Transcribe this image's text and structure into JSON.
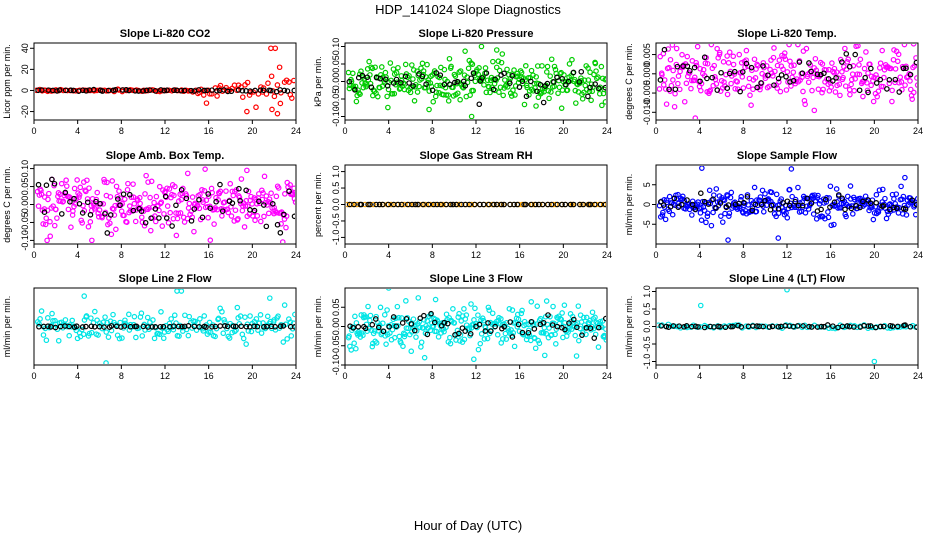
{
  "figure": {
    "title": "HDP_141024  Slope Diagnostics",
    "xlabel": "Hour of Day (UTC)"
  },
  "chart_data": [
    {
      "type": "scatter",
      "title": "Slope Li-820 CO2",
      "ylabel": "Licor ppm per min.",
      "xlim": [
        0,
        24
      ],
      "xticks": [
        0,
        4,
        8,
        12,
        16,
        20,
        24
      ],
      "ylim": [
        -28,
        45
      ],
      "yticks": [
        -20,
        0,
        20,
        40
      ],
      "color": "#ff0000",
      "series": [
        {
          "name": "colored",
          "pattern": "tail",
          "spread": 8,
          "start": 0.2,
          "end": 24,
          "count": 120,
          "points": [
            {
              "x": 21.7,
              "y": 40
            },
            {
              "x": 22.1,
              "y": 40
            },
            {
              "x": 22.3,
              "y": -22
            },
            {
              "x": 21.8,
              "y": -18
            },
            {
              "x": 19.5,
              "y": -20
            },
            {
              "x": 22.5,
              "y": 22
            },
            {
              "x": 15.8,
              "y": -12
            }
          ]
        },
        {
          "name": "black",
          "pattern": "flat",
          "spread": 0.5,
          "start": 0.3,
          "end": 24,
          "count": 60
        }
      ]
    },
    {
      "type": "scatter",
      "title": "Slope Li-820 Pressure",
      "ylabel": "kPa per min.",
      "xlim": [
        0,
        24
      ],
      "xticks": [
        0,
        4,
        8,
        12,
        16,
        20,
        24
      ],
      "ylim": [
        -0.11,
        0.11
      ],
      "yticks": [
        -0.1,
        -0.05,
        0.0,
        0.05,
        0.1
      ],
      "color": "#00cc00",
      "series": [
        {
          "name": "colored",
          "pattern": "cloud",
          "spread": 0.035,
          "start": 0.3,
          "end": 24,
          "count": 330,
          "points": [
            {
              "x": 12.5,
              "y": 0.1
            },
            {
              "x": 11.6,
              "y": -0.1
            },
            {
              "x": 7.7,
              "y": -0.08
            },
            {
              "x": 13.9,
              "y": 0.09
            },
            {
              "x": 17.5,
              "y": -0.07
            }
          ]
        },
        {
          "name": "black",
          "pattern": "cloud",
          "spread": 0.02,
          "start": 0.3,
          "end": 24,
          "count": 60,
          "points": [
            {
              "x": 12.3,
              "y": -0.065
            },
            {
              "x": 18.2,
              "y": -0.06
            }
          ]
        }
      ]
    },
    {
      "type": "scatter",
      "title": "Slope Li-820 Temp.",
      "ylabel": "degrees C per min.",
      "xlim": [
        0,
        24
      ],
      "xticks": [
        0,
        4,
        8,
        12,
        16,
        20,
        24
      ],
      "ylim": [
        -0.012,
        0.008
      ],
      "yticks": [
        -0.01,
        -0.005,
        0.0,
        0.005
      ],
      "color": "#ff00ff",
      "series": [
        {
          "name": "colored",
          "pattern": "cloud",
          "spread": 0.004,
          "start": 0.3,
          "end": 24,
          "count": 300,
          "points": [
            {
              "x": 1.5,
              "y": 0.0075
            },
            {
              "x": 23.6,
              "y": 0.0078
            },
            {
              "x": 3.6,
              "y": -0.0115
            },
            {
              "x": 14.5,
              "y": -0.0095
            }
          ]
        },
        {
          "name": "black",
          "pattern": "cloud",
          "spread": 0.0025,
          "start": 0.3,
          "end": 24,
          "count": 60
        }
      ]
    },
    {
      "type": "scatter",
      "title": "Slope Amb. Box Temp.",
      "ylabel": "degrees C per min.",
      "xlim": [
        0,
        24
      ],
      "xticks": [
        0,
        4,
        8,
        12,
        16,
        20,
        24
      ],
      "ylim": [
        -0.11,
        0.11
      ],
      "yticks": [
        -0.1,
        -0.05,
        0.0,
        0.05,
        0.1
      ],
      "color": "#ff00ff",
      "series": [
        {
          "name": "colored",
          "pattern": "cloud",
          "spread": 0.04,
          "start": 0.3,
          "end": 24,
          "count": 320,
          "points": [
            {
              "x": 1.2,
              "y": -0.1
            },
            {
              "x": 19.5,
              "y": 0.095
            },
            {
              "x": 5.3,
              "y": -0.1
            }
          ]
        },
        {
          "name": "black",
          "pattern": "cloud",
          "spread": 0.035,
          "start": 0.3,
          "end": 24,
          "count": 60
        }
      ]
    },
    {
      "type": "scatter",
      "title": "Slope Gas Stream RH",
      "ylabel": "percent per min.",
      "xlim": [
        0,
        24
      ],
      "xticks": [
        0,
        4,
        8,
        12,
        16,
        20,
        24
      ],
      "ylim": [
        -1.2,
        1.2
      ],
      "yticks": [
        -1.0,
        -0.5,
        0.0,
        0.5,
        1.0
      ],
      "color": "#ffa500",
      "series": [
        {
          "name": "colored",
          "pattern": "flat",
          "spread": 0.0,
          "start": 0.1,
          "end": 24,
          "count": 60
        },
        {
          "name": "black",
          "pattern": "flat",
          "spread": 0.0,
          "start": 0.3,
          "end": 24,
          "count": 60
        }
      ]
    },
    {
      "type": "scatter",
      "title": "Slope Sample Flow",
      "ylabel": "ml/min per min.",
      "xlim": [
        0,
        24
      ],
      "xticks": [
        0,
        4,
        8,
        12,
        16,
        20,
        24
      ],
      "ylim": [
        -10,
        10
      ],
      "yticks": [
        -5,
        0,
        5
      ],
      "color": "#0000ff",
      "series": [
        {
          "name": "colored",
          "pattern": "cloud",
          "spread": 2.2,
          "start": 0.3,
          "end": 24,
          "count": 300,
          "points": [
            {
              "x": 12.4,
              "y": 9
            },
            {
              "x": 4.2,
              "y": 9.2
            },
            {
              "x": 6.6,
              "y": -9
            },
            {
              "x": 11.2,
              "y": -8.5
            },
            {
              "x": 22.8,
              "y": 6.8
            }
          ]
        },
        {
          "name": "black",
          "pattern": "cloud",
          "spread": 1.0,
          "start": 0.3,
          "end": 24,
          "count": 60
        }
      ]
    },
    {
      "type": "scatter",
      "title": "Slope Line 2 Flow",
      "ylabel": "ml/min per min.",
      "xlim": [
        0,
        24
      ],
      "xticks": [
        0,
        4,
        8,
        12,
        16,
        20,
        24
      ],
      "ylim": [
        -0.38,
        0.38
      ],
      "yticks": [],
      "color": "#00e5e5",
      "series": [
        {
          "name": "colored",
          "pattern": "cloud",
          "spread": 0.08,
          "start": 0.3,
          "end": 24,
          "count": 200,
          "points": [
            {
              "x": 13.1,
              "y": 0.35
            },
            {
              "x": 13.5,
              "y": 0.35
            },
            {
              "x": 6.6,
              "y": -0.36
            },
            {
              "x": 4.6,
              "y": 0.3
            },
            {
              "x": 21.6,
              "y": 0.28
            }
          ]
        },
        {
          "name": "black",
          "pattern": "flat",
          "spread": 0.004,
          "start": 0.3,
          "end": 24,
          "count": 60
        }
      ]
    },
    {
      "type": "scatter",
      "title": "Slope Line 3 Flow",
      "ylabel": "ml/min per min.",
      "xlim": [
        0,
        24
      ],
      "xticks": [
        0,
        4,
        8,
        12,
        16,
        20,
        24
      ],
      "ylim": [
        -0.1,
        0.1
      ],
      "yticks": [
        -0.1,
        -0.05,
        0.0,
        0.05
      ],
      "color": "#00e5e5",
      "series": [
        {
          "name": "colored",
          "pattern": "cloud",
          "spread": 0.028,
          "start": 0.3,
          "end": 24,
          "count": 330,
          "points": [
            {
              "x": 4.0,
              "y": 0.1
            },
            {
              "x": 11.8,
              "y": -0.085
            },
            {
              "x": 8.3,
              "y": 0.07
            },
            {
              "x": 18.3,
              "y": -0.075
            }
          ]
        },
        {
          "name": "black",
          "pattern": "cloud",
          "spread": 0.018,
          "start": 0.3,
          "end": 24,
          "count": 60
        }
      ]
    },
    {
      "type": "scatter",
      "title": "Slope Line 4 (LT) Flow",
      "ylabel": "ml/min per min.",
      "xlim": [
        0,
        24
      ],
      "xticks": [
        0,
        4,
        8,
        12,
        16,
        20,
        24
      ],
      "ylim": [
        -1.1,
        1.1
      ],
      "yticks": [
        -1.0,
        -0.5,
        0.0,
        0.5,
        1.0
      ],
      "color": "#00e5e5",
      "series": [
        {
          "name": "colored",
          "pattern": "flat",
          "spread": 0.03,
          "start": 0.1,
          "end": 24,
          "count": 80,
          "points": [
            {
              "x": 4.1,
              "y": 0.6
            },
            {
              "x": 12.0,
              "y": 1.05
            },
            {
              "x": 20.0,
              "y": -1.0
            }
          ]
        },
        {
          "name": "black",
          "pattern": "flat",
          "spread": 0.02,
          "start": 0.3,
          "end": 24,
          "count": 60
        }
      ]
    }
  ]
}
